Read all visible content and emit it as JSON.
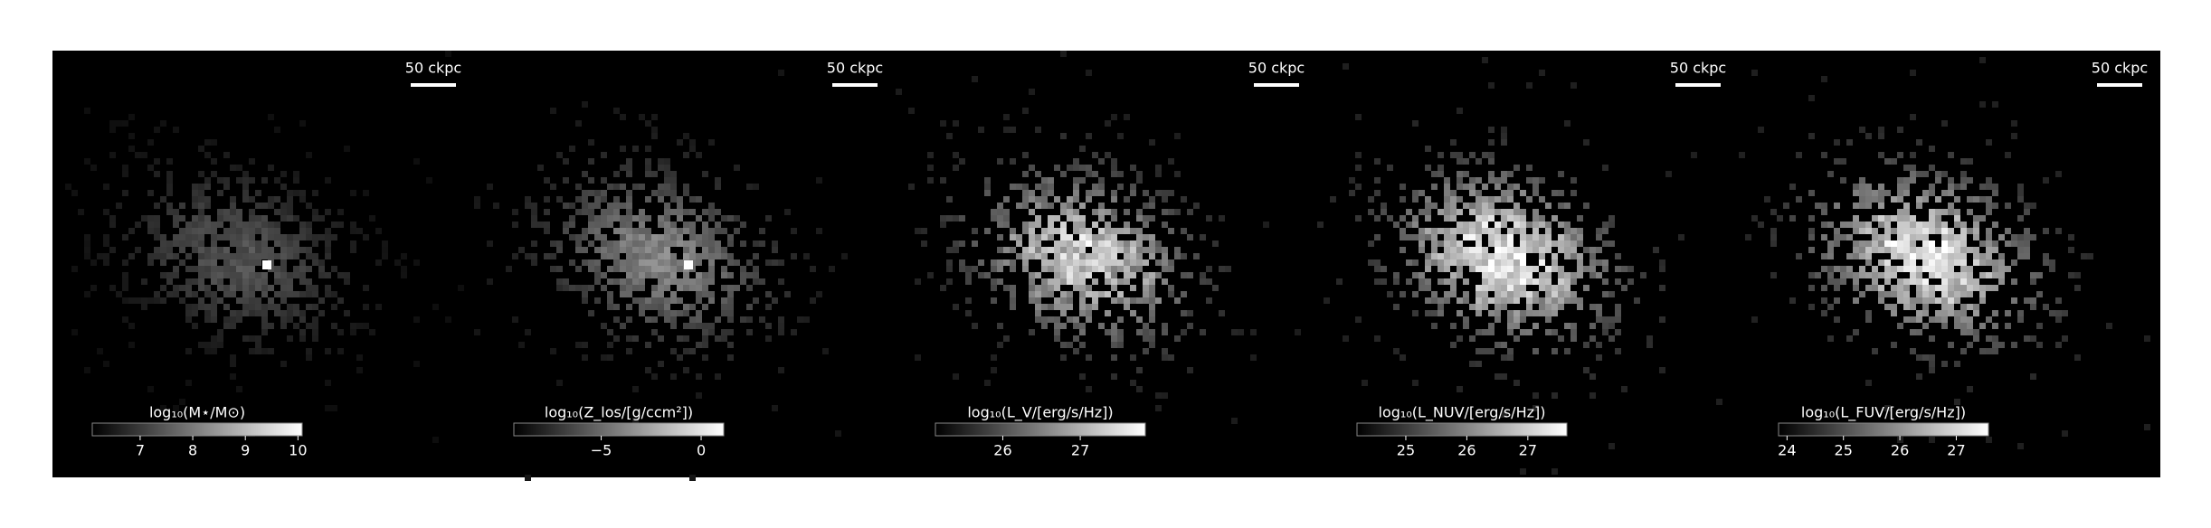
{
  "chart_data": [
    {
      "type": "image",
      "scale_bar_label": "50 ckpc",
      "colorbar": {
        "label": "log₁₀(M⋆/M⊙)",
        "lim": [
          6.09,
          10.08
        ],
        "ticks": [
          7,
          8,
          9,
          10
        ]
      }
    },
    {
      "type": "image",
      "scale_bar_label": "50 ckpc",
      "colorbar": {
        "label": "log₁₀(Z_los/[g/ccm²])",
        "lim": [
          -9.37,
          1.13
        ],
        "ticks": [
          {
            "value": -5,
            "label": "−5"
          },
          {
            "value": 0,
            "label": "0"
          }
        ]
      }
    },
    {
      "type": "image",
      "scale_bar_label": "50 ckpc",
      "colorbar": {
        "label": "log₁₀(L_V/[erg/s/Hz])",
        "lim": [
          25.13,
          27.84
        ],
        "ticks": [
          26,
          27
        ]
      }
    },
    {
      "type": "image",
      "scale_bar_label": "50 ckpc",
      "colorbar": {
        "label": "log₁₀(L_NUV/[erg/s/Hz])",
        "lim": [
          24.2,
          27.64
        ],
        "ticks": [
          25,
          26,
          27
        ]
      }
    },
    {
      "type": "image",
      "scale_bar_label": "50 ckpc",
      "colorbar": {
        "label": "log₁₀(L_FUV/[erg/s/Hz])",
        "lim": [
          23.85,
          27.57
        ],
        "ticks": [
          24,
          25,
          26,
          27
        ]
      }
    }
  ]
}
